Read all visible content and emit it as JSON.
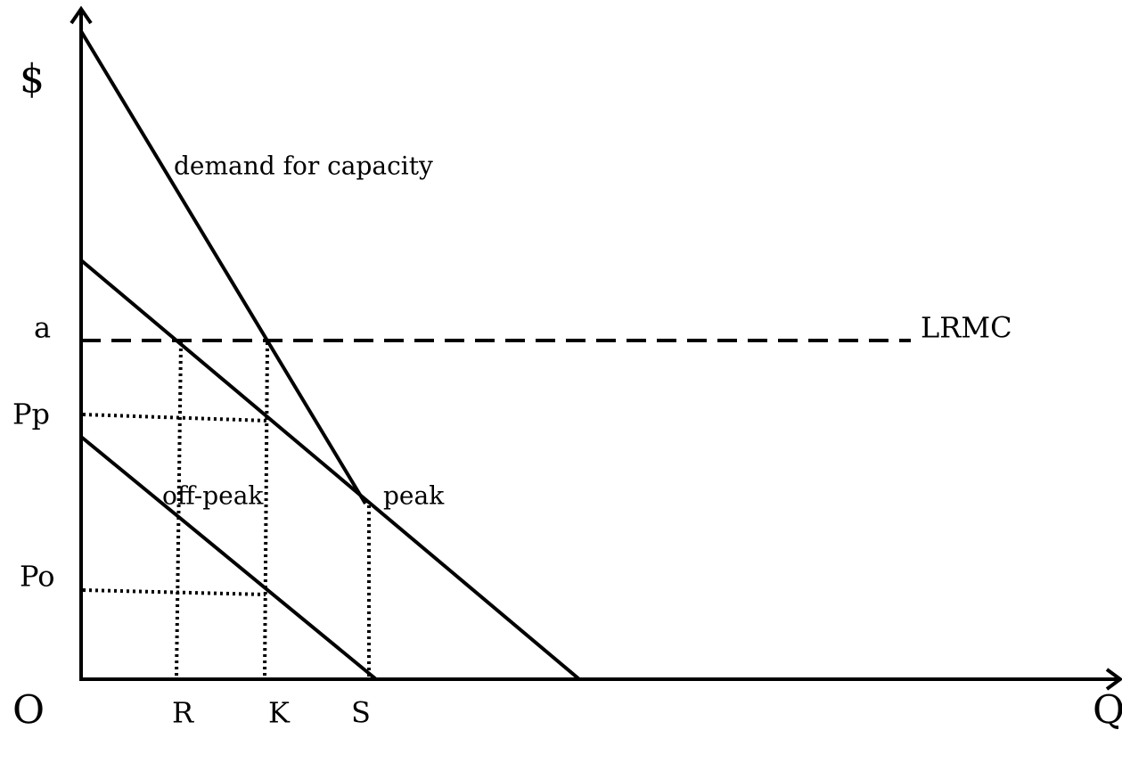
{
  "axes": {
    "y": "$",
    "x": "Q",
    "origin": "O"
  },
  "price_levels": [
    "a",
    "Pp",
    "Po"
  ],
  "quantities": [
    "R",
    "K",
    "S"
  ],
  "curves": {
    "capacity": "demand for capacity",
    "peak": "peak",
    "off_peak": "off-peak",
    "lrmc": "LRMC"
  }
}
